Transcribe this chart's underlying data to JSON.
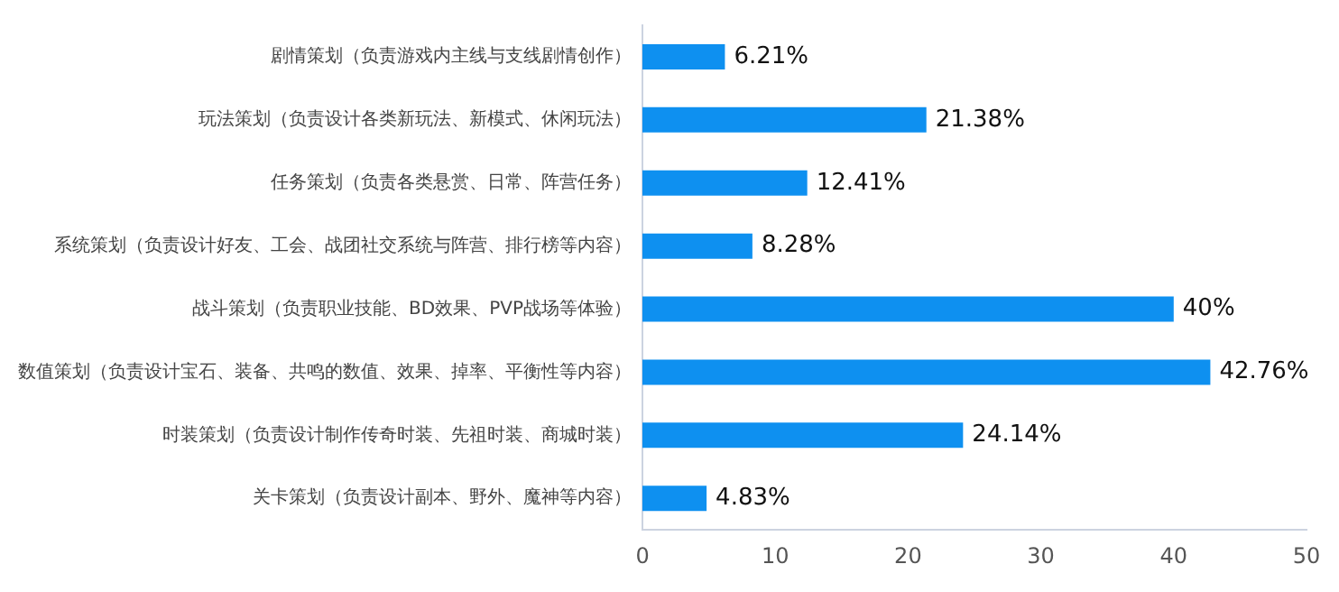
{
  "chart_data": {
    "type": "bar",
    "orientation": "horizontal",
    "categories": [
      "剧情策划（负责游戏内主线与支线剧情创作）",
      "玩法策划（负责设计各类新玩法、新模式、休闲玩法）",
      "任务策划（负责各类悬赏、日常、阵营任务）",
      "系统策划（负责设计好友、工会、战团社交系统与阵营、排行榜等内容）",
      "战斗策划（负责职业技能、BD效果、PVP战场等体验）",
      "数值策划（负责设计宝石、装备、共鸣的数值、效果、掉率、平衡性等内容）",
      "时装策划（负责设计制作传奇时装、先祖时装、商城时装）",
      "关卡策划（负责设计副本、野外、魔神等内容）"
    ],
    "values": [
      6.21,
      21.38,
      12.41,
      8.28,
      40,
      42.76,
      24.14,
      4.83
    ],
    "value_labels": [
      "6.21%",
      "21.38%",
      "12.41%",
      "8.28%",
      "40%",
      "42.76%",
      "24.14%",
      "4.83%"
    ],
    "color": "#0e90f0",
    "xlim": [
      0,
      50
    ],
    "xticks": [
      0,
      10,
      20,
      30,
      40,
      50
    ],
    "grid": false,
    "legend": false
  }
}
